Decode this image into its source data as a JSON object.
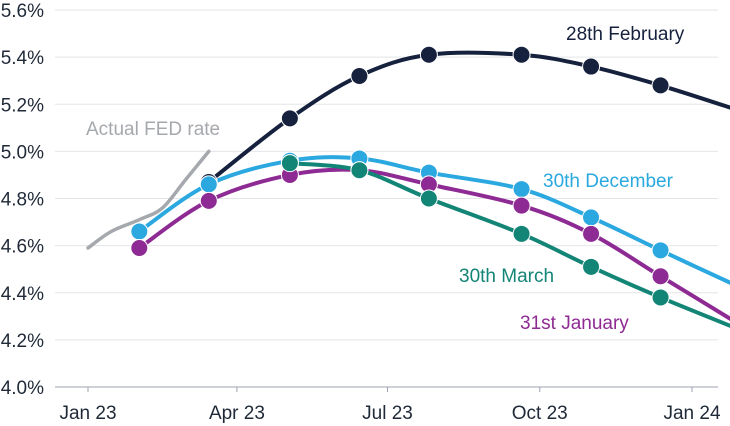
{
  "chart_data": {
    "type": "line",
    "xlabel": "",
    "ylabel": "",
    "ylim": [
      4.0,
      5.6
    ],
    "y_ticks": [
      4.0,
      4.2,
      4.4,
      4.6,
      4.8,
      5.0,
      5.2,
      5.4,
      5.6
    ],
    "y_tick_labels": [
      "4.0%",
      "4.2%",
      "4.4%",
      "4.6%",
      "4.8%",
      "5.0%",
      "5.2%",
      "5.4%",
      "5.6%"
    ],
    "x_ticks": [
      "2023-01-01",
      "2023-04-01",
      "2023-07-01",
      "2023-10-01",
      "2024-01-01"
    ],
    "x_tick_labels": [
      "Jan 23",
      "Apr 23",
      "Jul 23",
      "Oct 23",
      "Jan 24"
    ],
    "grid": "horizontal",
    "series": [
      {
        "name": "Actual FED rate",
        "color": "#a5a8ad",
        "markers": false,
        "x": [
          "2023-01-01",
          "2023-01-15",
          "2023-02-01",
          "2023-02-15",
          "2023-03-01",
          "2023-03-15"
        ],
        "y": [
          4.59,
          4.66,
          4.71,
          4.76,
          4.88,
          5.0
        ]
      },
      {
        "name": "28th February",
        "color": "#16213d",
        "markers": true,
        "x": [
          "2023-03-15",
          "2023-05-03",
          "2023-06-14",
          "2023-07-26",
          "2023-09-20",
          "2023-11-01",
          "2023-12-13",
          "2024-01-31"
        ],
        "y": [
          4.87,
          5.14,
          5.32,
          5.41,
          5.41,
          5.36,
          5.28,
          5.17
        ]
      },
      {
        "name": "30th December",
        "color": "#2aa8df",
        "markers": true,
        "x": [
          "2023-02-01",
          "2023-03-15",
          "2023-05-03",
          "2023-06-14",
          "2023-07-26",
          "2023-09-20",
          "2023-11-01",
          "2023-12-13",
          "2024-01-31"
        ],
        "y": [
          4.66,
          4.86,
          4.96,
          4.97,
          4.91,
          4.84,
          4.72,
          4.58,
          4.42
        ]
      },
      {
        "name": "31st January",
        "color": "#8e2a93",
        "markers": true,
        "x": [
          "2023-02-01",
          "2023-03-15",
          "2023-05-03",
          "2023-06-14",
          "2023-07-26",
          "2023-09-20",
          "2023-11-01",
          "2023-12-13",
          "2024-01-31"
        ],
        "y": [
          4.59,
          4.79,
          4.9,
          4.92,
          4.86,
          4.77,
          4.65,
          4.47,
          4.26
        ]
      },
      {
        "name": "30th March",
        "color": "#138576",
        "markers": true,
        "x": [
          "2023-05-03",
          "2023-06-14",
          "2023-07-26",
          "2023-09-20",
          "2023-11-01",
          "2023-12-13",
          "2024-01-31"
        ],
        "y": [
          4.95,
          4.92,
          4.8,
          4.65,
          4.51,
          4.38,
          4.24
        ]
      }
    ]
  }
}
